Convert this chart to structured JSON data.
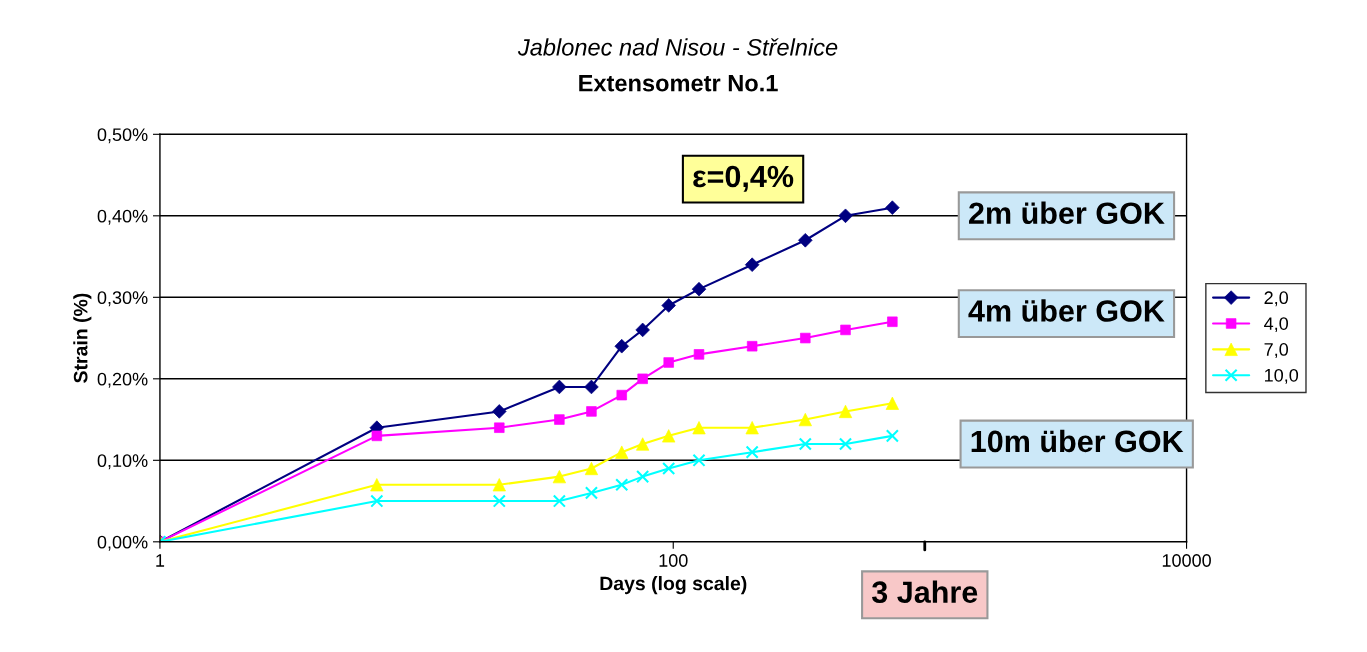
{
  "chart_data": {
    "type": "line",
    "title": "Jablonec nad Nisou - Střelnice",
    "subtitle": "Extensometr No.1",
    "xlabel": "Days (log scale)",
    "ylabel": "Strain (%)",
    "x": [
      1,
      7,
      21,
      36,
      48,
      63,
      76,
      96,
      126,
      203,
      327,
      469,
      714
    ],
    "series": [
      {
        "name": "2,0",
        "color": "#000080",
        "marker": "diamond",
        "values": [
          0,
          0.14,
          0.16,
          0.19,
          0.19,
          0.24,
          0.26,
          0.29,
          0.31,
          0.34,
          0.37,
          0.4,
          0.41
        ]
      },
      {
        "name": "4,0",
        "color": "#ff00ff",
        "marker": "square",
        "values": [
          0,
          0.13,
          0.14,
          0.15,
          0.16,
          0.18,
          0.2,
          0.22,
          0.23,
          0.24,
          0.25,
          0.26,
          0.27
        ]
      },
      {
        "name": "7,0",
        "color": "#ffff00",
        "marker": "triangle",
        "values": [
          0,
          0.07,
          0.07,
          0.08,
          0.09,
          0.11,
          0.12,
          0.13,
          0.14,
          0.14,
          0.15,
          0.16,
          0.17
        ]
      },
      {
        "name": "10,0",
        "color": "#00ffff",
        "marker": "cross",
        "values": [
          0,
          0.05,
          0.05,
          0.05,
          0.06,
          0.07,
          0.08,
          0.09,
          0.1,
          0.11,
          0.12,
          0.12,
          0.13
        ]
      }
    ],
    "log": "x",
    "xlim": [
      1,
      10000
    ],
    "xticks": [
      1,
      100,
      10000
    ],
    "ylim": [
      0,
      0.5
    ],
    "yticks": [
      {
        "value": 0,
        "label": "0,00%"
      },
      {
        "value": 0.1,
        "label": "0,10%"
      },
      {
        "value": 0.2,
        "label": "0,20%"
      },
      {
        "value": 0.3,
        "label": "0,30%"
      },
      {
        "value": 0.4,
        "label": "0,40%"
      },
      {
        "value": 0.5,
        "label": "0,50%"
      }
    ],
    "grid": "y",
    "legend": "right",
    "line_style": "solid",
    "annotations": [
      "ε=0,4%",
      "2m über GOK",
      "4m über GOK",
      "10m über GOK",
      "3 Jahre"
    ]
  }
}
